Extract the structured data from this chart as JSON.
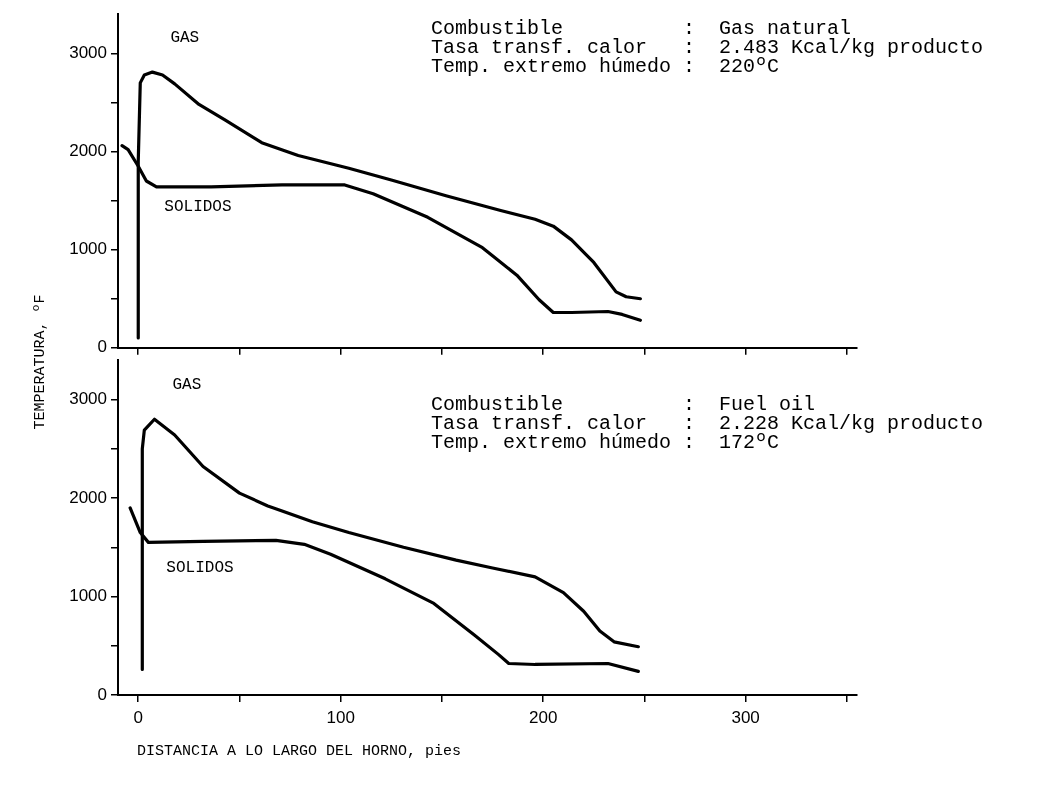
{
  "chart_data": [
    {
      "type": "line",
      "ylabel": "TEMPERATURA, ºF",
      "series": [
        {
          "name": "GAS",
          "color": "#000000",
          "x": [
            0,
            0,
            1,
            3,
            7,
            12,
            18,
            30,
            43,
            61,
            79,
            104,
            125,
            152,
            179,
            196,
            205,
            214,
            225,
            236,
            241,
            248
          ],
          "values": [
            100,
            1900,
            2700,
            2780,
            2810,
            2780,
            2690,
            2480,
            2320,
            2090,
            1960,
            1830,
            1710,
            1550,
            1400,
            1310,
            1240,
            1100,
            870,
            570,
            520,
            500
          ]
        },
        {
          "name": "SOLIDOS",
          "color": "#000000",
          "x": [
            -8,
            -5,
            0,
            4,
            9,
            36,
            71,
            102,
            116,
            143,
            170,
            187,
            198,
            205,
            214,
            232,
            239,
            248
          ],
          "values": [
            2060,
            2020,
            1850,
            1700,
            1640,
            1640,
            1660,
            1660,
            1570,
            1330,
            1020,
            740,
            490,
            360,
            360,
            370,
            340,
            280
          ]
        }
      ],
      "xlim": [
        -10,
        355
      ],
      "ylim": [
        0,
        3400
      ],
      "xticks": [
        {
          "value": 0,
          "label": null
        },
        {
          "value": 50,
          "label": null
        },
        {
          "value": 100,
          "label": null
        },
        {
          "value": 150,
          "label": null
        },
        {
          "value": 200,
          "label": null
        },
        {
          "value": 250,
          "label": null
        },
        {
          "value": 300,
          "label": null
        },
        {
          "value": 350,
          "label": null
        }
      ],
      "yticks": [
        0,
        {
          "value": 500,
          "label": null
        },
        1000,
        {
          "value": 1500,
          "label": null
        },
        2000,
        {
          "value": 2500,
          "label": null
        },
        3000
      ],
      "tick_labels": "y",
      "marker": "none",
      "line_style": "solid",
      "annotations": [
        "Combustible          :  Gas natural",
        "Tasa transf. calor   :  2.483 Kcal/kg producto",
        "Temp. extremo húmedo :  220ºC"
      ]
    },
    {
      "type": "line",
      "xlabel": "DISTANCIA A LO LARGO DEL HORNO, pies",
      "series": [
        {
          "name": "GAS",
          "color": "#000000",
          "x": [
            2,
            2,
            3,
            8,
            18,
            32,
            50,
            64,
            86,
            104,
            131,
            157,
            175,
            196,
            210,
            220,
            228,
            235,
            247
          ],
          "values": [
            260,
            2500,
            2690,
            2800,
            2640,
            2320,
            2050,
            1920,
            1760,
            1650,
            1500,
            1370,
            1290,
            1200,
            1040,
            850,
            650,
            540,
            490
          ]
        },
        {
          "name": "SOLIDOS",
          "color": "#000000",
          "x": [
            -4,
            1,
            5,
            32,
            68,
            82,
            95,
            122,
            146,
            166,
            178,
            183,
            196,
            232,
            247
          ],
          "values": [
            1900,
            1650,
            1550,
            1560,
            1570,
            1530,
            1430,
            1180,
            930,
            610,
            410,
            320,
            310,
            320,
            240
          ]
        }
      ],
      "xlim": [
        -10,
        355
      ],
      "ylim": [
        0,
        3400
      ],
      "xticks": [
        0,
        {
          "value": 50,
          "label": null
        },
        100,
        {
          "value": 150,
          "label": null
        },
        200,
        {
          "value": 250,
          "label": null
        },
        300,
        {
          "value": 350,
          "label": null
        }
      ],
      "yticks": [
        0,
        {
          "value": 500,
          "label": null
        },
        1000,
        {
          "value": 1500,
          "label": null
        },
        2000,
        {
          "value": 2500,
          "label": null
        },
        3000
      ],
      "marker": "none",
      "line_style": "solid",
      "annotations": [
        "Combustible          :  Fuel oil",
        "Tasa transf. calor   :  2.228 Kcal/kg producto",
        "Temp. extremo húmedo :  172ºC"
      ]
    }
  ]
}
